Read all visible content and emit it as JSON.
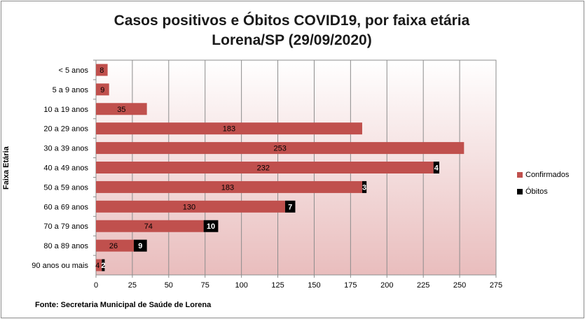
{
  "chart_data": {
    "type": "bar",
    "orientation": "horizontal",
    "stacked": true,
    "title": "Casos positivos e Óbitos COVID19, por faixa etária",
    "subtitle": "Lorena/SP (29/09/2020)",
    "ylabel": "Faixa Etária",
    "xlabel": "",
    "xlim": [
      0,
      275
    ],
    "xticks": [
      0,
      25,
      50,
      75,
      100,
      125,
      150,
      175,
      200,
      225,
      250,
      275
    ],
    "grid": "vertical",
    "legend_position": "right",
    "categories": [
      "< 5 anos",
      "5 a 9 anos",
      "10 a 19 anos",
      "20 a 29 anos",
      "30 a 39 anos",
      "40 a 49 anos",
      "50 a 59 anos",
      "60 a 69 anos",
      "70 a 79 anos",
      "80 a 89 anos",
      "90 anos ou mais"
    ],
    "series": [
      {
        "name": "Confirmados",
        "color": "#c0504d",
        "values": [
          8,
          9,
          35,
          183,
          253,
          232,
          183,
          130,
          74,
          26,
          4
        ]
      },
      {
        "name": "Óbitos",
        "color": "#000000",
        "values": [
          null,
          null,
          null,
          null,
          null,
          4,
          3,
          7,
          10,
          9,
          2
        ]
      }
    ]
  },
  "source": "Fonte: Secretaria Municipal  de Saúde de Lorena"
}
